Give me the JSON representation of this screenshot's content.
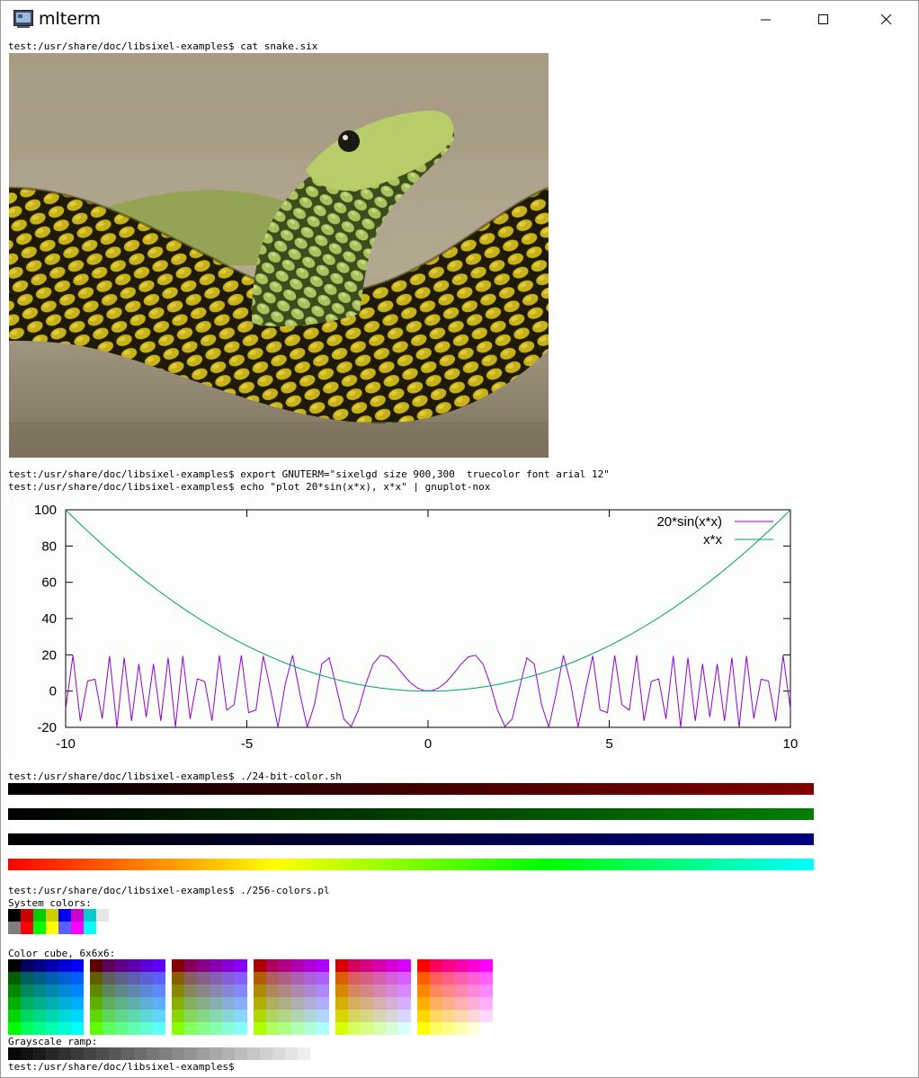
{
  "window": {
    "title": "mlterm",
    "icons": [
      "terminal-app-icon",
      "minimize-icon",
      "maximize-icon",
      "close-icon"
    ]
  },
  "terminal": {
    "lines": [
      "test:/usr/share/doc/libsixel-examples$ cat snake.six",
      "test:/usr/share/doc/libsixel-examples$ export GNUTERM=\"sixelgd size 900,300  truecolor font arial 12\"",
      "test:/usr/share/doc/libsixel-examples$ echo \"plot 20*sin(x*x), x*x\" | gnuplot-nox",
      "test:/usr/share/doc/libsixel-examples$ ./24-bit-color.sh",
      "test:/usr/share/doc/libsixel-examples$ ./256-colors.pl",
      "System colors:",
      "Color cube, 6x6x6:",
      "Grayscale ramp:",
      "test:/usr/share/doc/libsixel-examples$"
    ]
  },
  "snake_image": {
    "subject": "green tree snake (mamba) with yellow scales coiled on branch"
  },
  "chart_data": {
    "type": "line",
    "title": "",
    "xlim": [
      -10,
      10
    ],
    "ylim": [
      -20,
      100
    ],
    "xticks": [
      "-10",
      "-5",
      "0",
      "5",
      "10"
    ],
    "yticks": [
      "100",
      "80",
      "60",
      "40",
      "20",
      "0",
      "-20"
    ],
    "legend_position": "top-right",
    "series": [
      {
        "name": "20*sin(x*x)",
        "color": "#9400d3",
        "function": "20*sin(x*x)",
        "samples": 100
      },
      {
        "name": "x*x",
        "color": "#009e73",
        "function": "x*x",
        "samples": 100
      }
    ]
  },
  "colors": {
    "system": [
      "#000000",
      "#cd0000",
      "#00cd00",
      "#cdcd00",
      "#0000ee",
      "#cd00cd",
      "#00cdcd",
      "#e5e5e5",
      "#7f7f7f",
      "#ff0000",
      "#00ff00",
      "#ffff00",
      "#5c5cff",
      "#ff00ff",
      "#00ffff",
      "#ffffff"
    ]
  }
}
